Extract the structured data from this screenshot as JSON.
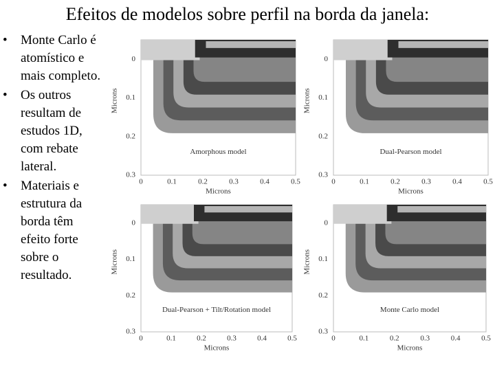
{
  "title": "Efeitos de modelos sobre perfil na borda da janela:",
  "bullets": [
    "Monte Carlo é atomístico e mais completo.",
    "Os outros resultam de estudos 1D, com rebate lateral.",
    "Materiais e estrutura da borda têm efeito forte sobre o resultado."
  ],
  "figure": {
    "panels": [
      {
        "label": "Amorphous model",
        "x_axis_title": "Microns",
        "y_axis_title": "Microns",
        "x_ticks": [
          "0",
          "0.1",
          "0.2",
          "0.3",
          "0.4",
          "0.5"
        ],
        "y_ticks": [
          "0",
          "0.1",
          "0.2",
          "0.3"
        ]
      },
      {
        "label": "Dual-Pearson model",
        "x_axis_title": "Microns",
        "y_axis_title": "Microns",
        "x_ticks": [
          "0",
          "0.1",
          "0.2",
          "0.3",
          "0.4",
          "0.5"
        ],
        "y_ticks": [
          "0",
          "0.1",
          "0.2",
          "0.3"
        ]
      },
      {
        "label": "Dual-Pearson + Tilt/Rotation model",
        "x_axis_title": "Microns",
        "y_axis_title": "Microns",
        "x_ticks": [
          "0",
          "0.1",
          "0.2",
          "0.3",
          "0.4",
          "0.5"
        ],
        "y_ticks": [
          "0",
          "0.1",
          "0.2",
          "0.3"
        ]
      },
      {
        "label": "Monte Carlo model",
        "x_axis_title": "Microns",
        "y_axis_title": "Microns",
        "x_ticks": [
          "0",
          "0.1",
          "0.2",
          "0.3",
          "0.4",
          "0.5"
        ],
        "y_ticks": [
          "0",
          "0.1",
          "0.2",
          "0.3"
        ]
      }
    ]
  }
}
